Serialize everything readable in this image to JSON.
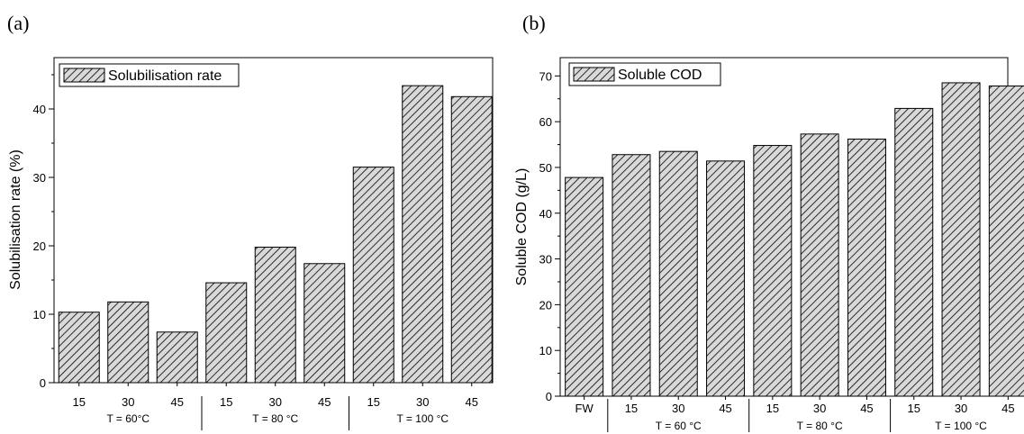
{
  "chart_data": [
    {
      "panel_label": "(a)",
      "type": "bar",
      "categories": [
        "15",
        "30",
        "45",
        "15",
        "30",
        "45",
        "15",
        "30",
        "45"
      ],
      "groups": [
        {
          "label": "T = 60°C",
          "count": 3
        },
        {
          "label": "T = 80 °C",
          "count": 3
        },
        {
          "label": "T = 100 °C",
          "count": 3
        }
      ],
      "series": [
        {
          "name": "Solubilisation rate",
          "values": [
            10.3,
            11.8,
            7.4,
            14.6,
            19.8,
            17.4,
            31.5,
            43.4,
            41.8
          ]
        }
      ],
      "ylabel": "Solubilisation rate (%)",
      "ylim": [
        0,
        47.5
      ],
      "yticks": [
        0,
        10,
        20,
        30,
        40
      ],
      "grid": false,
      "legend": "top-left",
      "fill_pattern": "diagonal-hatch"
    },
    {
      "panel_label": "(b)",
      "type": "bar",
      "categories": [
        "FW",
        "15",
        "30",
        "45",
        "15",
        "30",
        "45",
        "15",
        "30",
        "45"
      ],
      "groups": [
        {
          "label": "",
          "count": 1
        },
        {
          "label": "T = 60 °C",
          "count": 3
        },
        {
          "label": "T = 80 °C",
          "count": 3
        },
        {
          "label": "T = 100 °C",
          "count": 3
        }
      ],
      "series": [
        {
          "name": "Soluble COD",
          "values": [
            47.8,
            52.8,
            53.5,
            51.4,
            54.8,
            57.3,
            56.2,
            62.9,
            68.5,
            67.8
          ]
        }
      ],
      "ylabel": "Soluble COD (g/L)",
      "ylim": [
        0,
        74
      ],
      "yticks": [
        0,
        10,
        20,
        30,
        40,
        50,
        60,
        70
      ],
      "grid": false,
      "legend": "top-left",
      "fill_pattern": "diagonal-hatch"
    }
  ],
  "colors": {
    "bar_fill": "#d9d9d9",
    "hatch": "#000000",
    "axis": "#000000"
  }
}
